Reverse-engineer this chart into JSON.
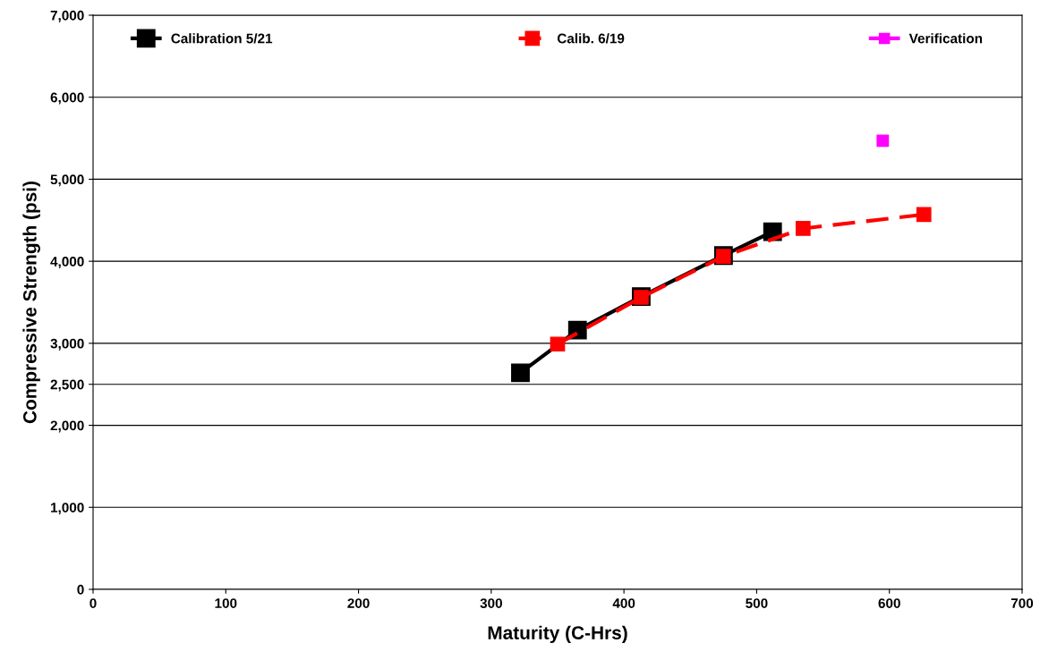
{
  "chart_data": {
    "type": "line",
    "xlabel": "Maturity (C-Hrs)",
    "ylabel": "Compressive Strength (psi)",
    "xlim": [
      0,
      700
    ],
    "xticks": [
      0,
      100,
      200,
      300,
      400,
      500,
      600,
      700
    ],
    "ylim": [
      0,
      7000
    ],
    "yticks": [
      0,
      {
        "value": 1000,
        "label": "1,000"
      },
      {
        "value": 2000,
        "label": "2,000"
      },
      {
        "value": 2500,
        "label": "2,500"
      },
      {
        "value": 3000,
        "label": "3,000"
      },
      {
        "value": 4000,
        "label": "4,000"
      },
      {
        "value": 5000,
        "label": "5,000"
      },
      {
        "value": 6000,
        "label": "6,000"
      },
      {
        "value": 7000,
        "label": "7,000"
      }
    ],
    "grid": "y",
    "legend": "top",
    "marker": "square",
    "series": [
      {
        "name": "Calibration 5/21",
        "color": "#000000",
        "line_style": "solid",
        "x": [
          322,
          365,
          413,
          475,
          512
        ],
        "values": [
          2640,
          3160,
          3570,
          4070,
          4360
        ]
      },
      {
        "name": "Calib. 6/19",
        "color": "#ff0000",
        "line_style": "dashed",
        "x": [
          350,
          413,
          475,
          535,
          626
        ],
        "values": [
          2990,
          3560,
          4060,
          4400,
          4570
        ]
      },
      {
        "name": "Verification",
        "color": "#ff00ff",
        "type": "scatter",
        "x": [
          595
        ],
        "values": [
          5470
        ]
      }
    ]
  }
}
